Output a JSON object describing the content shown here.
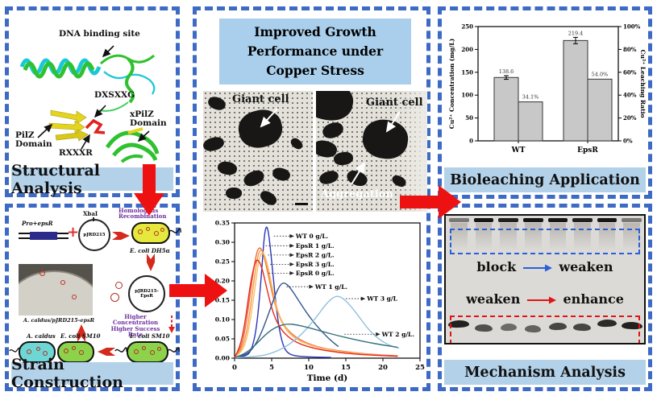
{
  "structural": {
    "banner": "Structural Analysis",
    "labels": {
      "dna_binding_site": "DNA binding site",
      "dxsxxg": "DXSXXG",
      "pilz_domain": "PilZ Domain",
      "rxxxr": "RXXXR",
      "xpilz_domain": "xPilZ Domain"
    }
  },
  "strain": {
    "banner": "Strain Construction",
    "pro_epsr": "Pro+epsR",
    "plus": "+",
    "xbai": "XbaI",
    "plasmid1": "pJRD215",
    "homologous_recombination": "Homologous Recombination",
    "ecoli_dh5a": "E. coli DH5α",
    "plasmid2": "pJRD215-EpsR",
    "plate_label": "A. caldus/pJRD215-epsR",
    "higher_rate_note": "Higher Concentration Higher Success Rate",
    "ecoli_sm10_right": "E. coli SM10",
    "a_caldus": "A. caldus",
    "ecoli_sm10_left": "E. coli SM10",
    "receptor": "Receptor",
    "donor": "Donor"
  },
  "growth": {
    "title": "Improved Growth Performance under Copper Stress",
    "tem_left": {
      "giant_cell": "Giant cell"
    },
    "tem_right": {
      "giant_cell": "Giant cell",
      "aggregation": "Aggregation"
    }
  },
  "bioleaching": {
    "banner": "Bioleaching Application"
  },
  "mechanism": {
    "banner": "Mechanism Analysis",
    "block": "block",
    "weaken_top": "weaken",
    "weaken_bottom": "weaken",
    "enhance": "enhance",
    "lane_count": 8
  },
  "chart_data": [
    {
      "type": "line",
      "title": "",
      "xlabel": "Time (d)",
      "ylabel": "",
      "xlim": [
        0,
        25
      ],
      "ylim": [
        0,
        0.35
      ],
      "xticks": [
        0,
        5,
        10,
        15,
        20,
        25
      ],
      "yticks": [
        "0.00",
        "0.05",
        "0.10",
        "0.15",
        "0.20",
        "0.25",
        "0.30",
        "0.35"
      ],
      "grid": false,
      "legend_position": "inline-annotations",
      "series": [
        {
          "name": "WT 0 g/L.",
          "color": "#2a35b8",
          "points": [
            [
              0,
              0.001
            ],
            [
              1.5,
              0.004
            ],
            [
              2.3,
              0.02
            ],
            [
              3,
              0.08
            ],
            [
              3.6,
              0.21
            ],
            [
              4.0,
              0.32
            ],
            [
              4.35,
              0.347
            ],
            [
              4.7,
              0.31
            ],
            [
              5.2,
              0.21
            ],
            [
              5.8,
              0.1
            ],
            [
              6.4,
              0.04
            ],
            [
              7,
              0.015
            ],
            [
              8,
              0.006
            ],
            [
              10,
              0.003
            ],
            [
              13,
              0.002
            ]
          ]
        },
        {
          "name": "EpsR 1 g/L.",
          "color": "#f26a3a",
          "points": [
            [
              0,
              0.002
            ],
            [
              0.8,
              0.02
            ],
            [
              1.5,
              0.08
            ],
            [
              2.2,
              0.18
            ],
            [
              2.8,
              0.26
            ],
            [
              3.3,
              0.291
            ],
            [
              3.9,
              0.272
            ],
            [
              4.6,
              0.21
            ],
            [
              5.4,
              0.14
            ],
            [
              6.3,
              0.095
            ],
            [
              7.5,
              0.065
            ],
            [
              9,
              0.045
            ],
            [
              11,
              0.03
            ],
            [
              13,
              0.022
            ],
            [
              16,
              0.014
            ],
            [
              19,
              0.009
            ],
            [
              22,
              0.006
            ]
          ]
        },
        {
          "name": "EpsR 2 g/L.",
          "color": "#f59a40",
          "points": [
            [
              0,
              0.002
            ],
            [
              0.9,
              0.018
            ],
            [
              1.7,
              0.07
            ],
            [
              2.4,
              0.17
            ],
            [
              3.0,
              0.255
            ],
            [
              3.5,
              0.286
            ],
            [
              4.1,
              0.265
            ],
            [
              4.8,
              0.2
            ],
            [
              5.6,
              0.13
            ],
            [
              6.5,
              0.085
            ],
            [
              7.8,
              0.055
            ],
            [
              9.5,
              0.038
            ],
            [
              11.5,
              0.026
            ],
            [
              14,
              0.017
            ],
            [
              17,
              0.011
            ],
            [
              20,
              0.007
            ],
            [
              22,
              0.005
            ]
          ]
        },
        {
          "name": "EpsR 3 g/L.",
          "color": "#f8bc66",
          "points": [
            [
              0,
              0.002
            ],
            [
              1.0,
              0.015
            ],
            [
              1.8,
              0.06
            ],
            [
              2.6,
              0.16
            ],
            [
              3.2,
              0.25
            ],
            [
              3.7,
              0.279
            ],
            [
              4.3,
              0.255
            ],
            [
              5.0,
              0.19
            ],
            [
              5.8,
              0.12
            ],
            [
              6.8,
              0.08
            ],
            [
              8,
              0.052
            ],
            [
              10,
              0.035
            ],
            [
              12,
              0.024
            ],
            [
              15,
              0.015
            ],
            [
              18,
              0.009
            ],
            [
              21,
              0.006
            ],
            [
              22,
              0.005
            ]
          ]
        },
        {
          "name": "EpsR 0 g/L.",
          "color": "#e8281e",
          "points": [
            [
              0,
              0.002
            ],
            [
              0.7,
              0.025
            ],
            [
              1.4,
              0.09
            ],
            [
              2.1,
              0.19
            ],
            [
              2.7,
              0.245
            ],
            [
              3.1,
              0.258
            ],
            [
              3.7,
              0.235
            ],
            [
              4.4,
              0.175
            ],
            [
              5.2,
              0.115
            ],
            [
              6.2,
              0.075
            ],
            [
              7.5,
              0.05
            ],
            [
              9,
              0.035
            ],
            [
              11,
              0.024
            ],
            [
              13.5,
              0.016
            ],
            [
              16.5,
              0.01
            ],
            [
              19.5,
              0.007
            ],
            [
              22,
              0.005
            ]
          ]
        },
        {
          "name": "WT 1 g/L.",
          "color": "#33548c",
          "points": [
            [
              0,
              0.001
            ],
            [
              1.5,
              0.008
            ],
            [
              2.5,
              0.025
            ],
            [
              3.5,
              0.06
            ],
            [
              4.5,
              0.11
            ],
            [
              5.5,
              0.165
            ],
            [
              6.2,
              0.192
            ],
            [
              6.8,
              0.196
            ],
            [
              7.6,
              0.18
            ],
            [
              8.6,
              0.15
            ],
            [
              9.8,
              0.115
            ],
            [
              11,
              0.085
            ],
            [
              12.2,
              0.06
            ],
            [
              13.2,
              0.042
            ],
            [
              14,
              0.03
            ]
          ]
        },
        {
          "name": "WT 3 g/L",
          "color": "#8cc0de",
          "points": [
            [
              0,
              0.001
            ],
            [
              3,
              0.004
            ],
            [
              5,
              0.012
            ],
            [
              7,
              0.03
            ],
            [
              9,
              0.06
            ],
            [
              11,
              0.105
            ],
            [
              12.5,
              0.145
            ],
            [
              13.8,
              0.164
            ],
            [
              15,
              0.15
            ],
            [
              16.5,
              0.115
            ],
            [
              18,
              0.075
            ],
            [
              19.5,
              0.048
            ],
            [
              21,
              0.032
            ],
            [
              22.2,
              0.026
            ]
          ]
        },
        {
          "name": "WT 2 g/L.",
          "color": "#35707c",
          "points": [
            [
              0,
              0.001
            ],
            [
              1,
              0.008
            ],
            [
              2,
              0.02
            ],
            [
              3,
              0.038
            ],
            [
              4,
              0.058
            ],
            [
              5,
              0.074
            ],
            [
              6,
              0.084
            ],
            [
              7.2,
              0.089
            ],
            [
              8.5,
              0.086
            ],
            [
              10,
              0.079
            ],
            [
              12,
              0.068
            ],
            [
              14,
              0.058
            ],
            [
              16,
              0.049
            ],
            [
              18,
              0.041
            ],
            [
              20,
              0.034
            ],
            [
              22,
              0.028
            ]
          ]
        }
      ],
      "annotations": [
        {
          "text": "WT 0 g/L.",
          "x1": 5.3,
          "x2": 7.6,
          "y": 0.316
        },
        {
          "text": "EpsR 1 g/L.",
          "x1": 4.2,
          "x2": 7.6,
          "y": 0.291
        },
        {
          "text": "EpsR 2 g/L.",
          "x1": 4.5,
          "x2": 7.6,
          "y": 0.267
        },
        {
          "text": "EpsR 3 g/L.",
          "x1": 4.8,
          "x2": 7.6,
          "y": 0.243
        },
        {
          "text": "EpsR 0 g/L.",
          "x1": 4.6,
          "x2": 7.6,
          "y": 0.22
        },
        {
          "text": "WT 1 g/L.",
          "x1": 7.0,
          "x2": 10.2,
          "y": 0.185
        },
        {
          "text": "WT 3 g/L",
          "x1": 15.0,
          "x2": 17.2,
          "y": 0.154
        },
        {
          "text": "WT 2 g/L.",
          "x1": 14.8,
          "x2": 19.2,
          "y": 0.062
        }
      ]
    },
    {
      "type": "bar",
      "categories": [
        "WT",
        "EpsR"
      ],
      "ylabel_left": "Cu²⁺ Concentration (mg/L)",
      "ylabel_right": "Cu²⁺ Leaching Ratio",
      "ylim_left": [
        0,
        250
      ],
      "ylim_right": [
        0,
        100
      ],
      "yticks_left": [
        0,
        50,
        100,
        150,
        200,
        250
      ],
      "yticks_right": [
        "0%",
        "20%",
        "40%",
        "60%",
        "80%",
        "100%"
      ],
      "bar_fill": "#c8c8c8",
      "bar_stroke": "#333333",
      "series": [
        {
          "name": "Cu2+ Concentration (mg/L)",
          "axis": "left",
          "values": [
            138.6,
            219.4
          ],
          "labels": [
            "138.6",
            "219.4"
          ],
          "error": [
            4,
            7
          ]
        },
        {
          "name": "Cu2+ Leaching Ratio",
          "axis": "right",
          "values": [
            34.1,
            54.0
          ],
          "labels": [
            "34.1%",
            "54.0%"
          ]
        }
      ]
    }
  ]
}
